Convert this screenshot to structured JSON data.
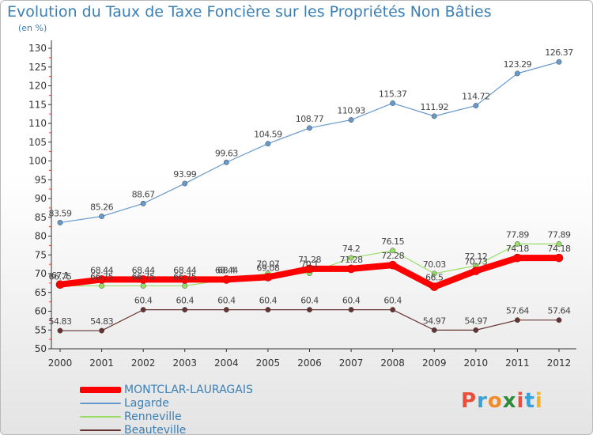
{
  "title": "Evolution du Taux de Taxe Foncière sur les Propriétés Non Bâties",
  "subtitle": "(en %)",
  "logo": {
    "text": "Proxiti",
    "colors": [
      "#e6503a",
      "#3aa0d8",
      "#f08b2a",
      "#2e8b3a",
      "#e6503a",
      "#3aa0d8",
      "#f0b52a"
    ]
  },
  "chart_data": {
    "type": "line",
    "x": [
      "2000",
      "2001",
      "2002",
      "2003",
      "2004",
      "2005",
      "2006",
      "2007",
      "2008",
      "2009",
      "2010",
      "2011",
      "2012"
    ],
    "ylim": [
      50,
      130
    ],
    "yticks": [
      50,
      55,
      60,
      65,
      70,
      75,
      80,
      85,
      90,
      95,
      100,
      105,
      110,
      115,
      120,
      125,
      130
    ],
    "grid": false,
    "legend_placement": "bottom-left",
    "series": [
      {
        "name": "MONTCLAR-LAURAGAIS",
        "color": "#ff0000",
        "values": [
          67.1,
          68.44,
          68.44,
          68.44,
          68.44,
          69.08,
          71.28,
          71.28,
          72.28,
          66.5,
          70.73,
          74.18,
          74.18
        ],
        "labels": [
          "67.1",
          "68.44",
          "68.44",
          "68.44",
          "68.44",
          "69.08",
          "71.28",
          "71.28",
          "72.28",
          "66.5",
          "70.73",
          "74.18",
          "74.18"
        ]
      },
      {
        "name": "Lagarde",
        "color": "#6699cc",
        "values": [
          83.59,
          85.26,
          88.67,
          93.99,
          99.63,
          104.59,
          108.77,
          110.93,
          115.37,
          111.92,
          114.72,
          123.29,
          126.37
        ],
        "labels": [
          "83.59",
          "85.26",
          "88.67",
          "93.99",
          "99.63",
          "104.59",
          "108.77",
          "110.93",
          "115.37",
          "111.92",
          "114.72",
          "123.29",
          "126.37"
        ]
      },
      {
        "name": "Renneville",
        "color": "#99dd66",
        "values": [
          66.75,
          66.75,
          66.75,
          66.75,
          68.4,
          70.07,
          70.1,
          74.2,
          76.15,
          70.03,
          72.12,
          77.89,
          77.89
        ],
        "labels": [
          "66.75",
          "66.75",
          "66.75",
          "66.75",
          "68.4",
          "70.07",
          "70.1",
          "74.2",
          "76.15",
          "70.03",
          "72.12",
          "77.89",
          "77.89"
        ]
      },
      {
        "name": "Beauteville",
        "color": "#663333",
        "values": [
          54.83,
          54.83,
          60.4,
          60.4,
          60.4,
          60.4,
          60.4,
          60.4,
          60.4,
          54.97,
          54.97,
          57.64,
          57.64
        ],
        "labels": [
          "54.83",
          "54.83",
          "60.4",
          "60.4",
          "60.4",
          "60.4",
          "60.4",
          "60.4",
          "60.4",
          "54.97",
          "54.97",
          "57.64",
          "57.64"
        ]
      }
    ]
  }
}
